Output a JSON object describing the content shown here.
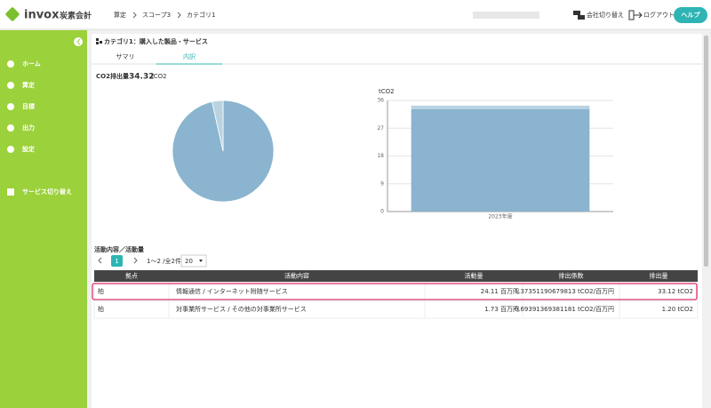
{
  "header": {
    "logo": "invox",
    "logo_sub": "炭素会計",
    "breadcrumb": [
      "算定",
      "スコープ3",
      "カテゴリ1"
    ],
    "actions": [
      "会社切り替え",
      "ログアウト"
    ],
    "help": "ヘルプ"
  },
  "sidebar": {
    "items": [
      "ホーム",
      "算定",
      "目標",
      "出力",
      "設定"
    ],
    "service": "サービス切り替え"
  },
  "page": {
    "title": "カテゴリ1：購入した製品・サービス",
    "tabs": [
      "サマリ",
      "内訳"
    ],
    "total_label": "CO2排出量",
    "total_value": "34.32",
    "total_unit": "tCO2"
  },
  "pie_chart": {
    "type": "pie",
    "values": [
      33.12,
      1.2
    ],
    "colors": [
      "#8ab4cf",
      "#b9d3e3"
    ]
  },
  "bar_chart": {
    "type": "bar",
    "y_label": "tCO2",
    "categories": [
      "2023年度"
    ],
    "series": [
      {
        "color": "#8ab4cf",
        "values": [
          33.12
        ]
      },
      {
        "color": "#b9d3e3",
        "values": [
          1.2
        ]
      }
    ],
    "ylim": [
      0,
      36
    ],
    "yticks": [
      0,
      9,
      18,
      27,
      36
    ],
    "grid": true
  },
  "activity": {
    "title": "活動内容／活動量",
    "pagination": {
      "page": "1",
      "range": "1〜2 /全2件",
      "per_page": "20"
    },
    "table": {
      "columns": [
        "拠点",
        "活動内容",
        "活動量",
        "排出係数",
        "排出量"
      ],
      "rows": [
        [
          "柏",
          "情報通信 / インターネット附随サービス",
          "24.11 百万円",
          "1.37351190679813 tCO2/百万円",
          "33.12 tCO2"
        ],
        [
          "柏",
          "対事業所サービス / その他の対事業所サービス",
          "1.73 百万円",
          "0.69391369381181 tCO2/百万円",
          "1.20 tCO2"
        ]
      ],
      "highlighted_row": 0
    }
  }
}
